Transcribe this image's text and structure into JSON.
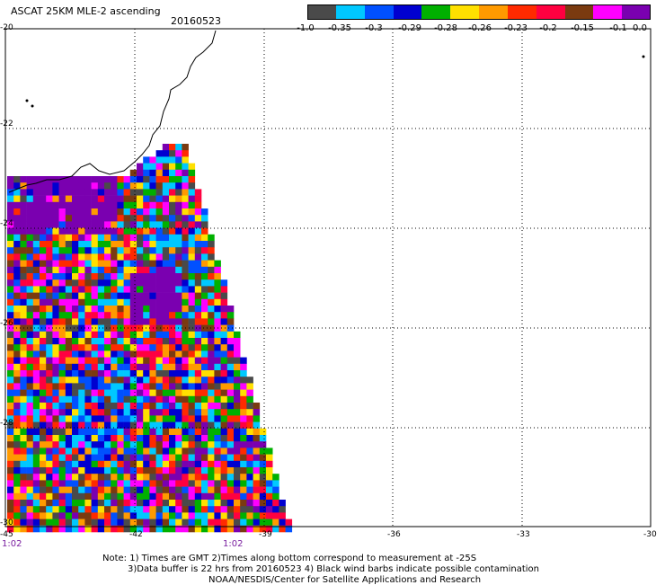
{
  "header": {
    "title": "ASCAT 25KM MLE-2 ascending",
    "date": "20160523"
  },
  "colorbar": {
    "labels": [
      "-1.0",
      "-0.35",
      "-0.3",
      "-0.29",
      "-0.28",
      "-0.26",
      "-0.23",
      "-0.2",
      "-0.15",
      "-0.1",
      "0.0"
    ],
    "colors": [
      "#4a4a4a",
      "#00c8ff",
      "#0050ff",
      "#0000d0",
      "#00b000",
      "#ffe000",
      "#ff9a00",
      "#ff2a00",
      "#ff0040",
      "#7a3a10",
      "#ff00ff",
      "#7a00b0"
    ]
  },
  "map": {
    "lon_min": -45,
    "lon_max": -30,
    "lat_min": -30,
    "lat_max": -20,
    "lon_ticks": [
      "-45",
      "-42",
      "-39",
      "-36",
      "-33",
      "-30"
    ],
    "lat_ticks": [
      "-20",
      "-22",
      "-24",
      "-26",
      "-28",
      "-30"
    ],
    "times": [
      "1:02",
      "1:02"
    ]
  },
  "notes": {
    "line1": "Note: 1) Times are GMT 2)Times along bottom correspond to measurement at -25S",
    "line2": "3)Data buffer is 22 hrs from 20160523 4) Black wind barbs indicate possible contamination",
    "line3": "NOAA/NESDIS/Center for Satellite Applications and Research"
  }
}
